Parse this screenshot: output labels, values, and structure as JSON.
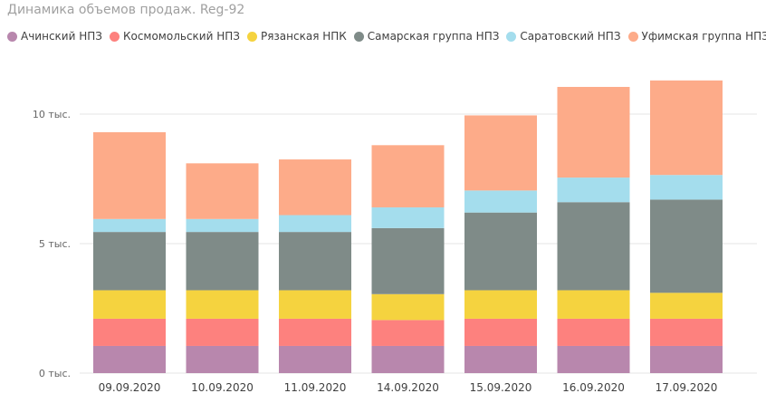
{
  "chart_data": {
    "type": "bar",
    "stacked": true,
    "title": "Динамика объемов продаж. Reg-92",
    "legend_position": "top-left",
    "grid": true,
    "categories": [
      "09.09.2020",
      "10.09.2020",
      "11.09.2020",
      "14.09.2020",
      "15.09.2020",
      "16.09.2020",
      "17.09.2020"
    ],
    "ylim": [
      0,
      12000
    ],
    "yticks": [
      {
        "value": 0,
        "label": "0 тыс."
      },
      {
        "value": 5000,
        "label": "5 тыс."
      },
      {
        "value": 10000,
        "label": "10 тыс."
      }
    ],
    "series": [
      {
        "name": "Ачинский НПЗ",
        "color": "#b887ad",
        "values": [
          1050,
          1050,
          1050,
          1050,
          1050,
          1050,
          1050
        ]
      },
      {
        "name": "Космомольский НПЗ",
        "color": "#fd817e",
        "values": [
          1050,
          1050,
          1050,
          1000,
          1050,
          1050,
          1050
        ]
      },
      {
        "name": "Рязанская НПК",
        "color": "#f5d33f",
        "values": [
          1100,
          1100,
          1100,
          1000,
          1100,
          1100,
          1000
        ]
      },
      {
        "name": "Самарская группа НПЗ",
        "color": "#7f8b88",
        "values": [
          2250,
          2250,
          2250,
          2550,
          3000,
          3400,
          3600
        ]
      },
      {
        "name": "Саратовский НПЗ",
        "color": "#a4dded",
        "values": [
          500,
          500,
          650,
          800,
          850,
          950,
          950
        ]
      },
      {
        "name": "Уфимская группа НПЗ",
        "color": "#fdab89",
        "values": [
          3350,
          2150,
          2150,
          2400,
          2900,
          3500,
          3650
        ]
      }
    ]
  }
}
